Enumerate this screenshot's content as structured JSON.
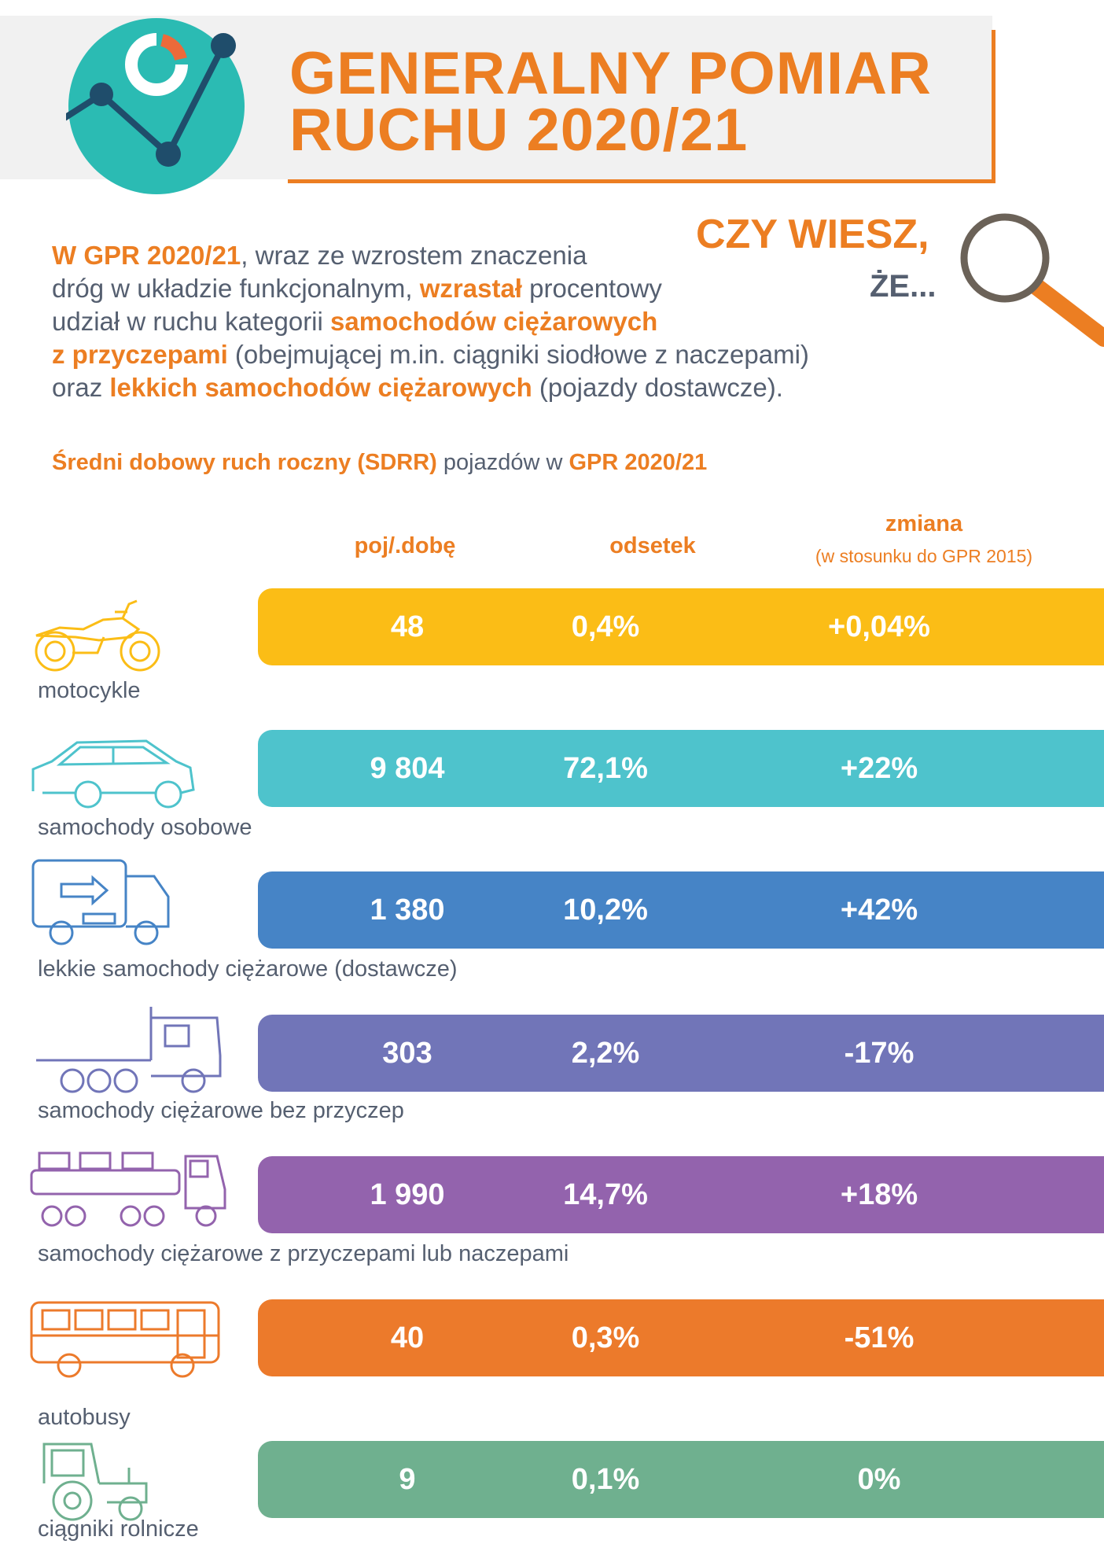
{
  "header": {
    "title_line1": "GENERALNY POMIAR",
    "title_line2": "RUCHU 2020/21"
  },
  "did_you_know": {
    "line1": "CZY WIESZ,",
    "line2": "ŻE..."
  },
  "intro": {
    "l1_hl": "W GPR 2020/21",
    "l1_rest": ", wraz ze wzrostem znaczenia",
    "l2_pre": "dróg w układzie funkcjonalnym, ",
    "l2_hl": "wzrastał",
    "l2_post": " procentowy",
    "l3_pre": "udział w ruchu kategorii ",
    "l3_hl": "samochodów ciężarowych",
    "l4_hl": "z przyczepami",
    "l4_post": " (obejmującej m.in. ciągniki siodłowe z naczepami)",
    "l5_pre": "oraz ",
    "l5_hl": "lekkich samochodów ciężarowych",
    "l5_post": " (pojazdy dostawcze)."
  },
  "subtitle": {
    "hl1": "Średni dobowy ruch roczny (SDRR)",
    "mid": " pojazdów w ",
    "hl2": "GPR 2020/21"
  },
  "columns": {
    "per_day": "poj/.dobę",
    "share": "odsetek",
    "change": "zmiana",
    "change_note": "(w stosunku do GPR 2015)"
  },
  "colors": {
    "accent": "#ec7e22",
    "text": "#555f70",
    "logo_teal": "#2bbbb3",
    "logo_navy": "#1f4d6b"
  },
  "rows": [
    {
      "label": "motocykle",
      "per_day": "48",
      "share": "0,4%",
      "change": "+0,04%",
      "color": "#fbbd16",
      "icon": "motorcycle-icon"
    },
    {
      "label": "samochody osobowe",
      "per_day": "9 804",
      "share": "72,1%",
      "change": "+22%",
      "color": "#4ec3cc",
      "icon": "car-icon"
    },
    {
      "label": "lekkie samochody ciężarowe (dostawcze)",
      "per_day": "1 380",
      "share": "10,2%",
      "change": "+42%",
      "color": "#4684c6",
      "icon": "delivery-truck-icon"
    },
    {
      "label": "samochody ciężarowe bez przyczep",
      "per_day": "303",
      "share": "2,2%",
      "change": "-17%",
      "color": "#7175b8",
      "icon": "truck-icon"
    },
    {
      "label": "samochody ciężarowe z przyczepami lub naczepami",
      "per_day": "1 990",
      "share": "14,7%",
      "change": "+18%",
      "color": "#9363ad",
      "icon": "truck-trailer-icon"
    },
    {
      "label": "autobusy",
      "per_day": "40",
      "share": "0,3%",
      "change": "-51%",
      "color": "#ec7a2b",
      "icon": "bus-icon"
    },
    {
      "label": "ciągniki rolnicze",
      "per_day": "9",
      "share": "0,1%",
      "change": "0%",
      "color": "#6fb08f",
      "icon": "tractor-icon"
    }
  ]
}
